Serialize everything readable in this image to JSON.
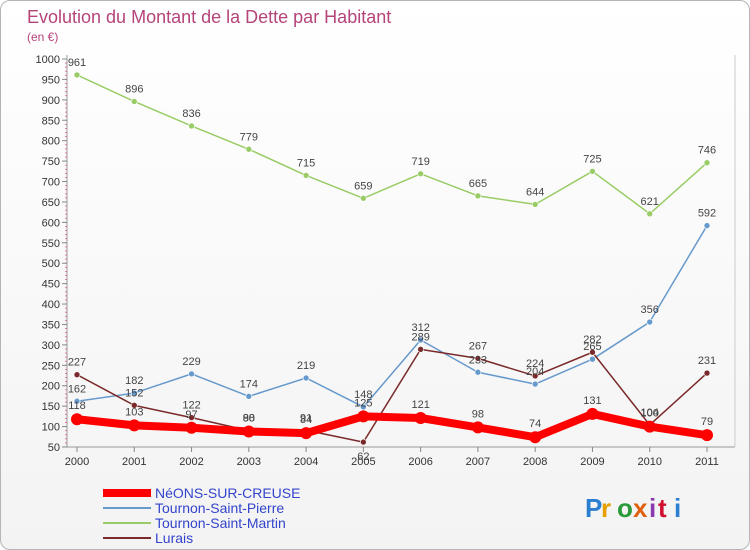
{
  "chart_data": {
    "type": "line",
    "title": "Evolution du Montant de la Dette par Habitant",
    "subtitle": "(en €)",
    "x": [
      "2000",
      "2001",
      "2002",
      "2003",
      "2004",
      "2005",
      "2006",
      "2007",
      "2008",
      "2009",
      "2010",
      "2011"
    ],
    "ylim": [
      50,
      1000
    ],
    "yticks": [
      50,
      100,
      150,
      200,
      250,
      300,
      350,
      400,
      450,
      500,
      550,
      600,
      650,
      700,
      750,
      800,
      850,
      900,
      950,
      1000
    ],
    "grid": false,
    "legend_position": "bottom-left",
    "series": [
      {
        "name": "NéONS-SUR-CREUSE",
        "color": "#ff0000",
        "values": [
          118,
          103,
          97,
          88,
          84,
          125,
          121,
          98,
          74,
          131,
          100,
          79
        ]
      },
      {
        "name": "Tournon-Saint-Pierre",
        "color": "#6699cc",
        "values": [
          162,
          182,
          229,
          174,
          219,
          148,
          312,
          233,
          204,
          265,
          356,
          592
        ]
      },
      {
        "name": "Tournon-Saint-Martin",
        "color": "#99cc66",
        "values": [
          961,
          896,
          836,
          779,
          715,
          659,
          719,
          665,
          644,
          725,
          621,
          746
        ]
      },
      {
        "name": "Lurais",
        "color": "#7a2a2a",
        "values": [
          227,
          152,
          122,
          90,
          91,
          62,
          289,
          267,
          224,
          282,
          104,
          231
        ]
      }
    ]
  },
  "brand": {
    "text": "Proxiti"
  }
}
